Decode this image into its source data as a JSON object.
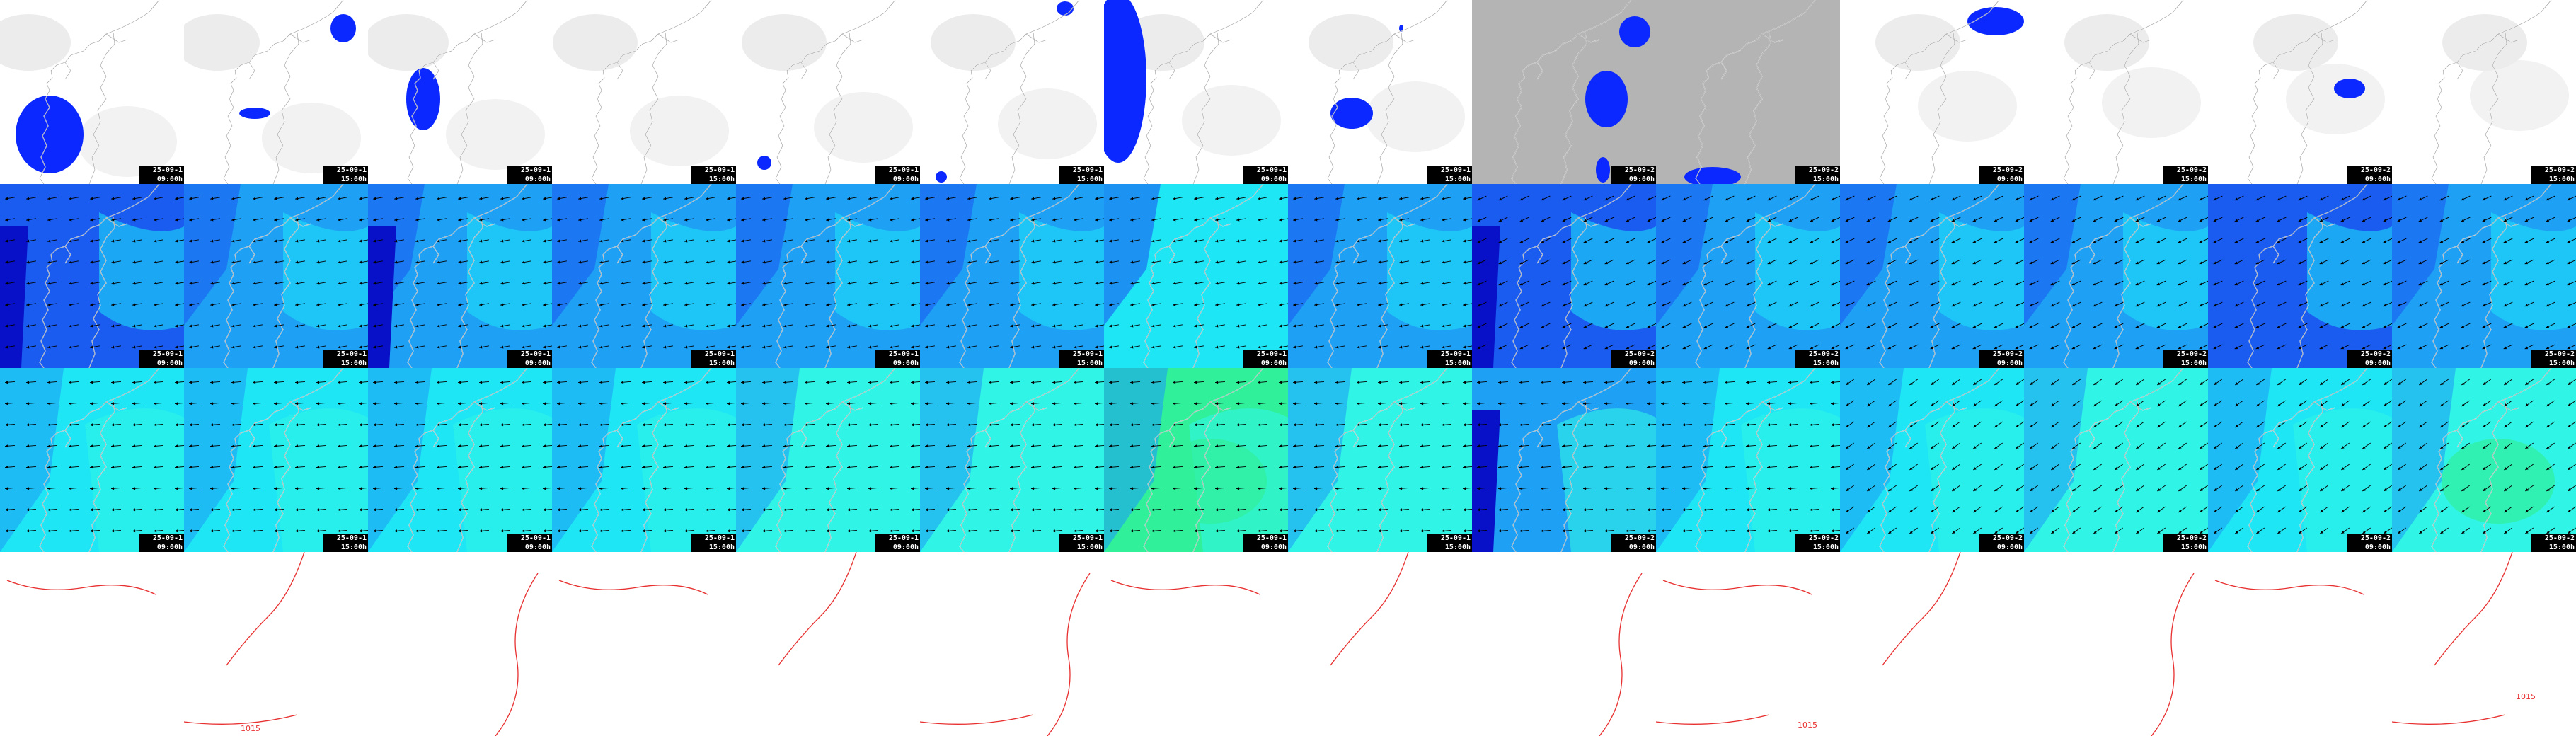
{
  "colors": {
    "cloud_bg_white": "#ffffff",
    "cloud_bg_gray": "#b4b4b4",
    "precip_blue": "#0a28ff",
    "wind_dark": "#0810c8",
    "wind_blue": "#1a5cf0",
    "wind_mid": "#1ea0f5",
    "wind_light": "#1ee6f5",
    "wind_cyan": "#30f5e6",
    "wind_green": "#30f09a",
    "coast": "#ffffff",
    "pressure_line": "#e83030"
  },
  "icons": [
    "coastline-icon",
    "wind-arrow-icon",
    "isobar-icon"
  ],
  "rows": [
    "cloud-precip",
    "wind-upper",
    "wind-lower",
    "pressure"
  ],
  "timestamps": [
    {
      "date": "25-09-1",
      "time": "09:00h"
    },
    {
      "date": "25-09-1",
      "time": "15:00h"
    },
    {
      "date": "25-09-1",
      "time": "09:00h"
    },
    {
      "date": "25-09-1",
      "time": "15:00h"
    },
    {
      "date": "25-09-1",
      "time": "09:00h"
    },
    {
      "date": "25-09-1",
      "time": "15:00h"
    },
    {
      "date": "25-09-1",
      "time": "09:00h"
    },
    {
      "date": "25-09-1",
      "time": "15:00h"
    },
    {
      "date": "25-09-2",
      "time": "09:00h"
    },
    {
      "date": "25-09-2",
      "time": "15:00h"
    },
    {
      "date": "25-09-2",
      "time": "09:00h"
    },
    {
      "date": "25-09-2",
      "time": "15:00h"
    },
    {
      "date": "25-09-2",
      "time": "09:00h"
    },
    {
      "date": "25-09-2",
      "time": "15:00h"
    }
  ],
  "isobar_labels": [
    "1015",
    "1015",
    "1015"
  ]
}
